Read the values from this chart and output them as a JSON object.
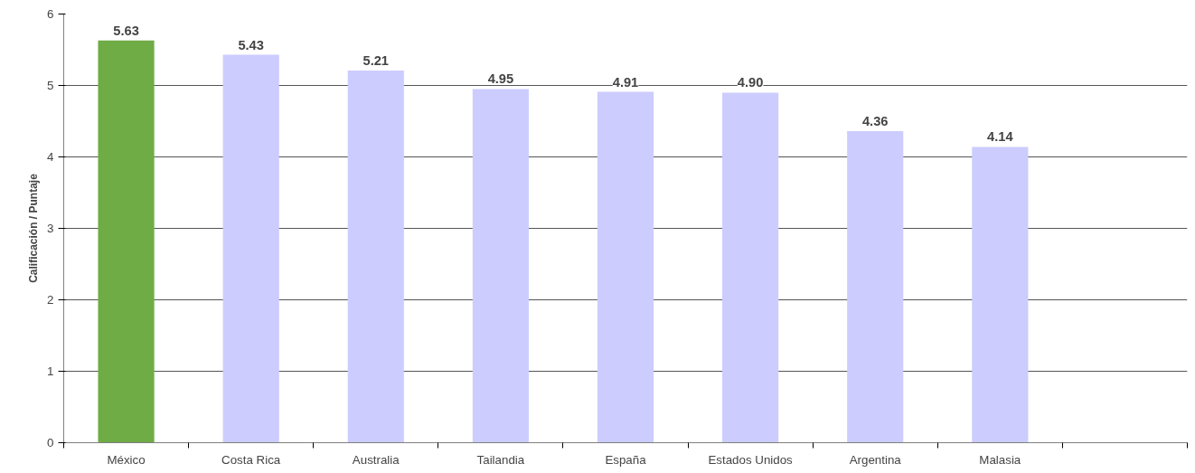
{
  "chart_data": {
    "type": "bar",
    "ylabel": "Calificación / Puntaje",
    "categories": [
      "México",
      "Costa Rica",
      "Australia",
      "Tailandia",
      "España",
      "Estados Unidos",
      "Argentina",
      "Malasia",
      null
    ],
    "values": [
      5.63,
      5.43,
      5.21,
      4.95,
      4.91,
      4.9,
      4.36,
      4.14,
      null
    ],
    "value_labels": [
      "5.63",
      "5.43",
      "5.21",
      "4.95",
      "4.91",
      "4.90",
      "4.36",
      "4.14",
      null
    ],
    "colors": [
      "#6fac46",
      "#ccccff",
      "#ccccff",
      "#ccccff",
      "#ccccff",
      "#ccccff",
      "#ccccff",
      "#ccccff",
      "#ccccff"
    ],
    "ylim": [
      0,
      6
    ],
    "yticks": [
      0,
      1,
      2,
      3,
      4,
      5,
      6
    ],
    "grid": "y"
  }
}
